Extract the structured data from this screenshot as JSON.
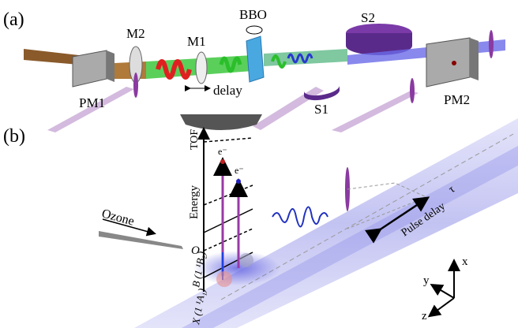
{
  "panel_a": {
    "label": "(a)",
    "components": {
      "m2": "M2",
      "m1": "M1",
      "bbo": "BBO",
      "s2": "S2",
      "pm1": "PM1",
      "delay": "delay",
      "s1": "S1",
      "pm2": "PM2"
    }
  },
  "panel_b": {
    "label": "(b)",
    "tof": "TOF",
    "electron_upper": "e⁻",
    "electron_lower": "e⁻",
    "energy": "Energy",
    "ozone": "Ozone",
    "state_o": "O",
    "state_b": "B (1 ¹B₂)",
    "state_x": "X (1 ¹A₁)",
    "pulse_delay": "Pulse delay",
    "tau": "τ",
    "axes": {
      "x": "x",
      "y": "y",
      "z": "z"
    }
  }
}
